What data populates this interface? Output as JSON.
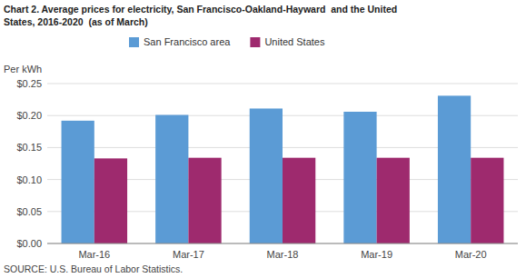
{
  "chart_data": {
    "type": "bar",
    "title": "Chart 2. Average prices for electricity, San Francisco-Oakland-Hayward  and the United",
    "subtitle": "States, 2016-2020  (as of March)",
    "ylabel": "Per kWh",
    "annotations": [
      "SOURCE: U.S. Bureau of Labor Statistics."
    ],
    "categories": [
      "Mar-16",
      "Mar-17",
      "Mar-18",
      "Mar-19",
      "Mar-20"
    ],
    "series": [
      {
        "name": "San Francisco area",
        "color": "#5B9BD5",
        "values": [
          0.192,
          0.201,
          0.211,
          0.206,
          0.231
        ]
      },
      {
        "name": "United States",
        "color": "#9E2A6E",
        "values": [
          0.133,
          0.134,
          0.134,
          0.134,
          0.134
        ]
      }
    ],
    "ylim": [
      0,
      0.25
    ],
    "yticks": [
      {
        "value": 0.0,
        "label": "$0.00"
      },
      {
        "value": 0.05,
        "label": "$0.05"
      },
      {
        "value": 0.1,
        "label": "$0.10"
      },
      {
        "value": 0.15,
        "label": "$0.15"
      },
      {
        "value": 0.2,
        "label": "$0.20"
      },
      {
        "value": 0.25,
        "label": "$0.25"
      }
    ],
    "grid": true,
    "legend": "top"
  }
}
